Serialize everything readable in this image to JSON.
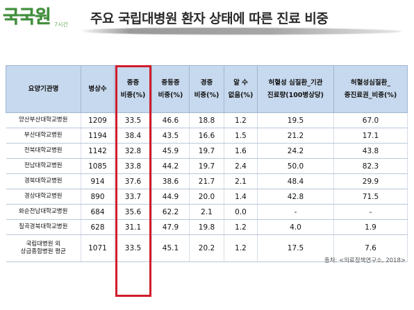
{
  "header": {
    "logo_text": "국국원",
    "logo_sub": "7시간",
    "title": "주요 국립대병원 환자 상태에 따른 진료 비중"
  },
  "table": {
    "columns": [
      "요양기관명",
      "병상수",
      "중증\n비중(%)",
      "중등증\n비중(%)",
      "경증\n비중(%)",
      "알 수\n없음(%)",
      "허혈성 심질환_기관\n진료량(100병상당)",
      "허혈성심질환_\n중진료권_비중(%)"
    ],
    "rows": [
      [
        "양산부산대학교병원",
        "1209",
        "33.5",
        "46.6",
        "18.8",
        "1.2",
        "19.5",
        "67.0"
      ],
      [
        "부산대학교병원",
        "1194",
        "38.4",
        "43.5",
        "16.6",
        "1.5",
        "21.2",
        "17.1"
      ],
      [
        "전북대학교병원",
        "1142",
        "32.8",
        "45.9",
        "19.7",
        "1.6",
        "24.2",
        "43.8"
      ],
      [
        "전남대학교병원",
        "1085",
        "33.8",
        "44.2",
        "19.7",
        "2.4",
        "50.0",
        "82.3"
      ],
      [
        "경북대학교병원",
        "914",
        "37.6",
        "38.6",
        "21.7",
        "2.1",
        "48.4",
        "29.9"
      ],
      [
        "경상대학교병원",
        "890",
        "33.7",
        "44.9",
        "20.0",
        "1.4",
        "42.8",
        "71.5"
      ],
      [
        "화순전남대학교병원",
        "684",
        "35.6",
        "62.2",
        "2.1",
        "0.0",
        "-",
        "-"
      ],
      [
        "칠곡경북대학교병원",
        "628",
        "31.1",
        "47.9",
        "19.8",
        "1.2",
        "4.0",
        "1.9"
      ],
      [
        "국립대병원 외\n상급종합병원 평균",
        "1071",
        "33.5",
        "45.1",
        "20.2",
        "1.2",
        "17.5",
        "7.6"
      ]
    ]
  },
  "source": "출처: <의료정책연구소, 2018>",
  "colors": {
    "header_bg": "#c7d9ee",
    "highlight": "#d11b2a",
    "logo": "#3f8f3a"
  }
}
